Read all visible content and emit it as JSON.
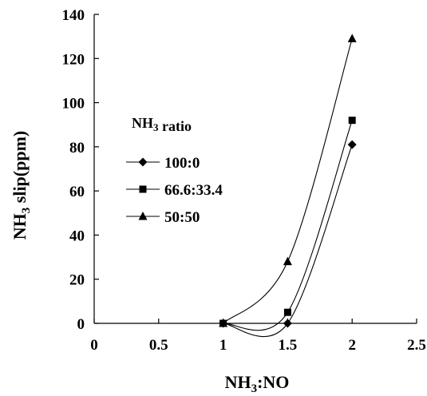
{
  "chart_data": {
    "type": "line",
    "title": "",
    "xlabel": "NH3:NO",
    "ylabel": "NH3 slip(ppm)",
    "xlim": [
      0,
      2.5
    ],
    "ylim": [
      0,
      140
    ],
    "x_ticks": [
      "0",
      "0.5",
      "1",
      "1.5",
      "2",
      "2.5"
    ],
    "y_ticks": [
      "0",
      "20",
      "40",
      "60",
      "80",
      "100",
      "120",
      "140"
    ],
    "legend_title": "NH3 ratio",
    "legend_position": "left-center",
    "grid": false,
    "smoothed": true,
    "series": [
      {
        "name": "100:0",
        "marker": "diamond",
        "x": [
          1,
          1.5,
          2
        ],
        "y": [
          0,
          0,
          81
        ]
      },
      {
        "name": "66.6:33.4",
        "marker": "square",
        "x": [
          1,
          1.5,
          2
        ],
        "y": [
          0,
          5,
          92
        ]
      },
      {
        "name": "50:50",
        "marker": "triangle",
        "x": [
          1,
          1.5,
          2
        ],
        "y": [
          0,
          28,
          129
        ]
      }
    ]
  }
}
